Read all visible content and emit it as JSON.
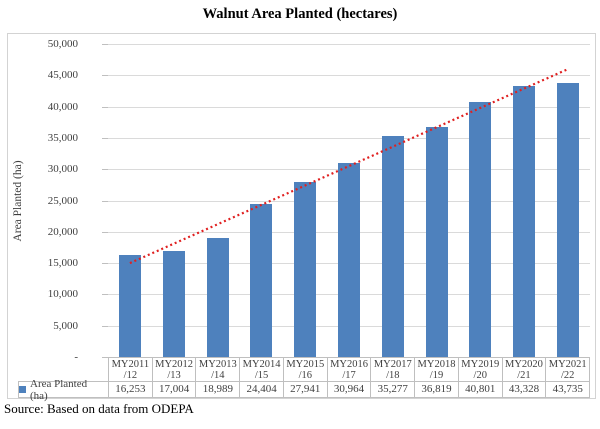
{
  "title": "Walnut Area Planted (hectares)",
  "source": "Source: Based on data from ODEPA",
  "y_axis": {
    "title": "Area Planted (ha)",
    "tick_labels_top_down": [
      "50,000",
      "45,000",
      "40,000",
      "35,000",
      "30,000",
      "25,000",
      "20,000",
      "15,000",
      "10,000",
      "5,000",
      "-"
    ],
    "min": 0,
    "max": 50000,
    "step": 5000
  },
  "legend": {
    "label": "Area Planted (ha)"
  },
  "colors": {
    "bar": "#4e81bd",
    "trendline": "#e02020",
    "gridline": "#dadada",
    "table_border": "#bfbfbf",
    "frame_border": "#d3d3d3",
    "text": "#3f3f3f",
    "title_text": "#000000"
  },
  "chart_data": {
    "type": "bar",
    "title": "Walnut Area Planted (hectares)",
    "xlabel": "",
    "ylabel": "Area Planted (ha)",
    "ylim": [
      0,
      50000
    ],
    "ytick_step": 5000,
    "grid": true,
    "legend_position": "bottom-left-data-table",
    "series_name": "Area Planted (ha)",
    "categories": [
      "MY2011/12",
      "MY2012/13",
      "MY2013/14",
      "MY2014/15",
      "MY2015/16",
      "MY2016/17",
      "MY2017/18",
      "MY2018/19",
      "MY2019/20",
      "MY2020/21",
      "MY2021/22"
    ],
    "values": [
      16253,
      17004,
      18989,
      24404,
      27941,
      30964,
      35277,
      36819,
      40801,
      43328,
      43735
    ],
    "value_labels": [
      "16,253",
      "17,004",
      "18,989",
      "24,404",
      "27,941",
      "30,964",
      "35,277",
      "36,819",
      "40,801",
      "43,328",
      "43,735"
    ],
    "trendline": {
      "type": "linear",
      "style": "dotted",
      "color": "#e02020",
      "start_value": 15000,
      "end_value": 46000
    }
  }
}
